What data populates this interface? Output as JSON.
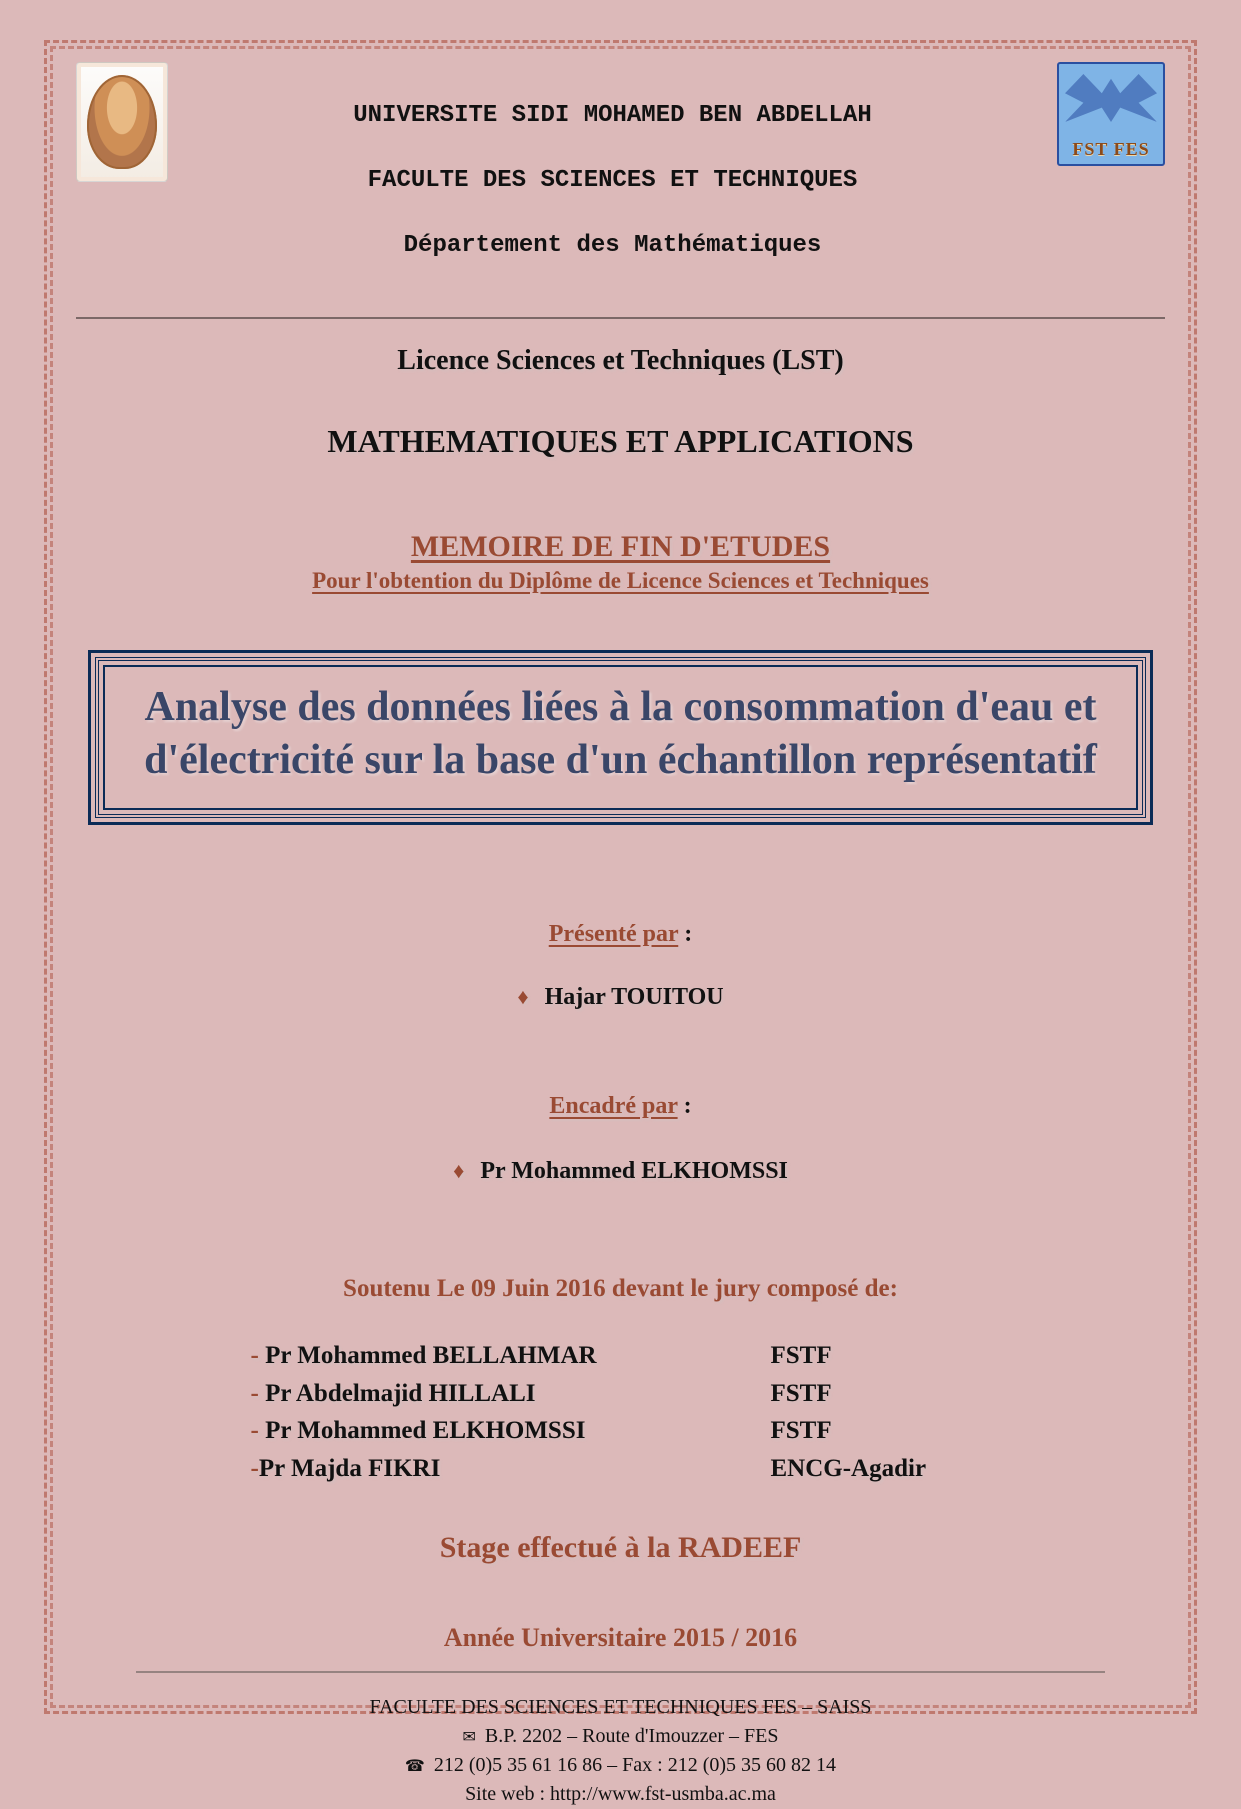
{
  "colors": {
    "page_bg": "#dcb9b9",
    "accent": "#9a4a33",
    "title_text": "#3a4668",
    "title_border": "#0b2b56",
    "rule": "rgba(60,50,48,0.6)",
    "dash_border": "rgba(168,70,52,0.55)",
    "logo2_bg": "#7fb4e6",
    "logo2_border": "#2a4fa0"
  },
  "header": {
    "university": "UNIVERSITE SIDI MOHAMED BEN ABDELLAH",
    "faculty": "FACULTE DES SCIENCES ET TECHNIQUES",
    "department": "Département des Mathématiques",
    "header_font_family": "Courier New",
    "header_fontsize_pt": 18,
    "logo_right_label": "FST FES"
  },
  "degree_line": "Licence Sciences et Techniques (LST)",
  "program": "MATHEMATIQUES ET APPLICATIONS",
  "memoire_title": "MEMOIRE DE FIN D'ETUDES",
  "memoire_subtitle": "Pour l'obtention du Diplôme de Licence Sciences et Techniques",
  "thesis_title": "Analyse des données liées à la consommation d'eau et d'électricité sur la base d'un échantillon représentatif",
  "thesis_title_fontsize_pt": 32,
  "presented_by_label": "Présenté par",
  "author": "Hajar TOUITOU",
  "supervised_by_label": "Encadré par",
  "supervisor": "Pr  Mohammed ELKHOMSSI",
  "defense_line": "Soutenu Le   09   Juin 2016  devant le jury composé de:",
  "jury": [
    {
      "name": "Pr  Mohammed BELLAHMAR",
      "affiliation": "FSTF"
    },
    {
      "name": "Pr Abdelmajid HILLALI",
      "affiliation": "FSTF"
    },
    {
      "name": "Pr Mohammed ELKHOMSSI",
      "affiliation": "FSTF"
    },
    {
      "name": "Pr Majda FIKRI",
      "affiliation": "ENCG-Agadir"
    }
  ],
  "internship_line": "Stage effectué à la RADEEF",
  "academic_year": "Année Universitaire  2015 / 2016",
  "footer": {
    "line1": "FACULTE DES SCIENCES ET TECHNIQUES FES – SAISS",
    "line2": "B.P. 2202 – Route d'Imouzzer – FES",
    "line3": "212 (0)5 35 61 16 86 – Fax : 212 (0)5 35 60 82 14",
    "line4": "Site web : http://www.fst-usmba.ac.ma",
    "icon_mail": "✉",
    "icon_phone": "☎"
  },
  "fonts": {
    "body_family": "Times New Roman",
    "section_label_pt": 18,
    "jury_pt": 19,
    "footer_pt": 15
  }
}
